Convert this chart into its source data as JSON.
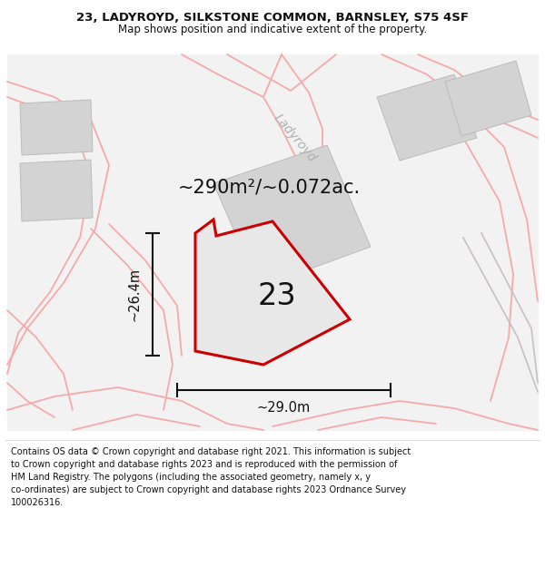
{
  "title_line1": "23, LADYROYD, SILKSTONE COMMON, BARNSLEY, S75 4SF",
  "title_line2": "Map shows position and indicative extent of the property.",
  "footer_text": "Contains OS data © Crown copyright and database right 2021. This information is subject to Crown copyright and database rights 2023 and is reproduced with the permission of HM Land Registry. The polygons (including the associated geometry, namely x, y co-ordinates) are subject to Crown copyright and database rights 2023 Ordnance Survey 100026316.",
  "area_label": "~290m²/~0.072ac.",
  "number_label": "23",
  "dim_vertical": "~26.4m",
  "dim_horizontal": "~29.0m",
  "road_label": "Ladyroyd",
  "map_bg": "#f2f2f2",
  "building_color": "#d3d3d3",
  "building_edge": "#bbbbbb",
  "highlight_outline": "#cc0000",
  "road_line_color": "#f5aaaa",
  "gray_road_color": "#c8c0c0",
  "dim_line_color": "#111111",
  "text_color": "#111111",
  "highlight_fill": "#e8e8e8",
  "road_text_color": "#b0b0b0",
  "white": "#ffffff"
}
